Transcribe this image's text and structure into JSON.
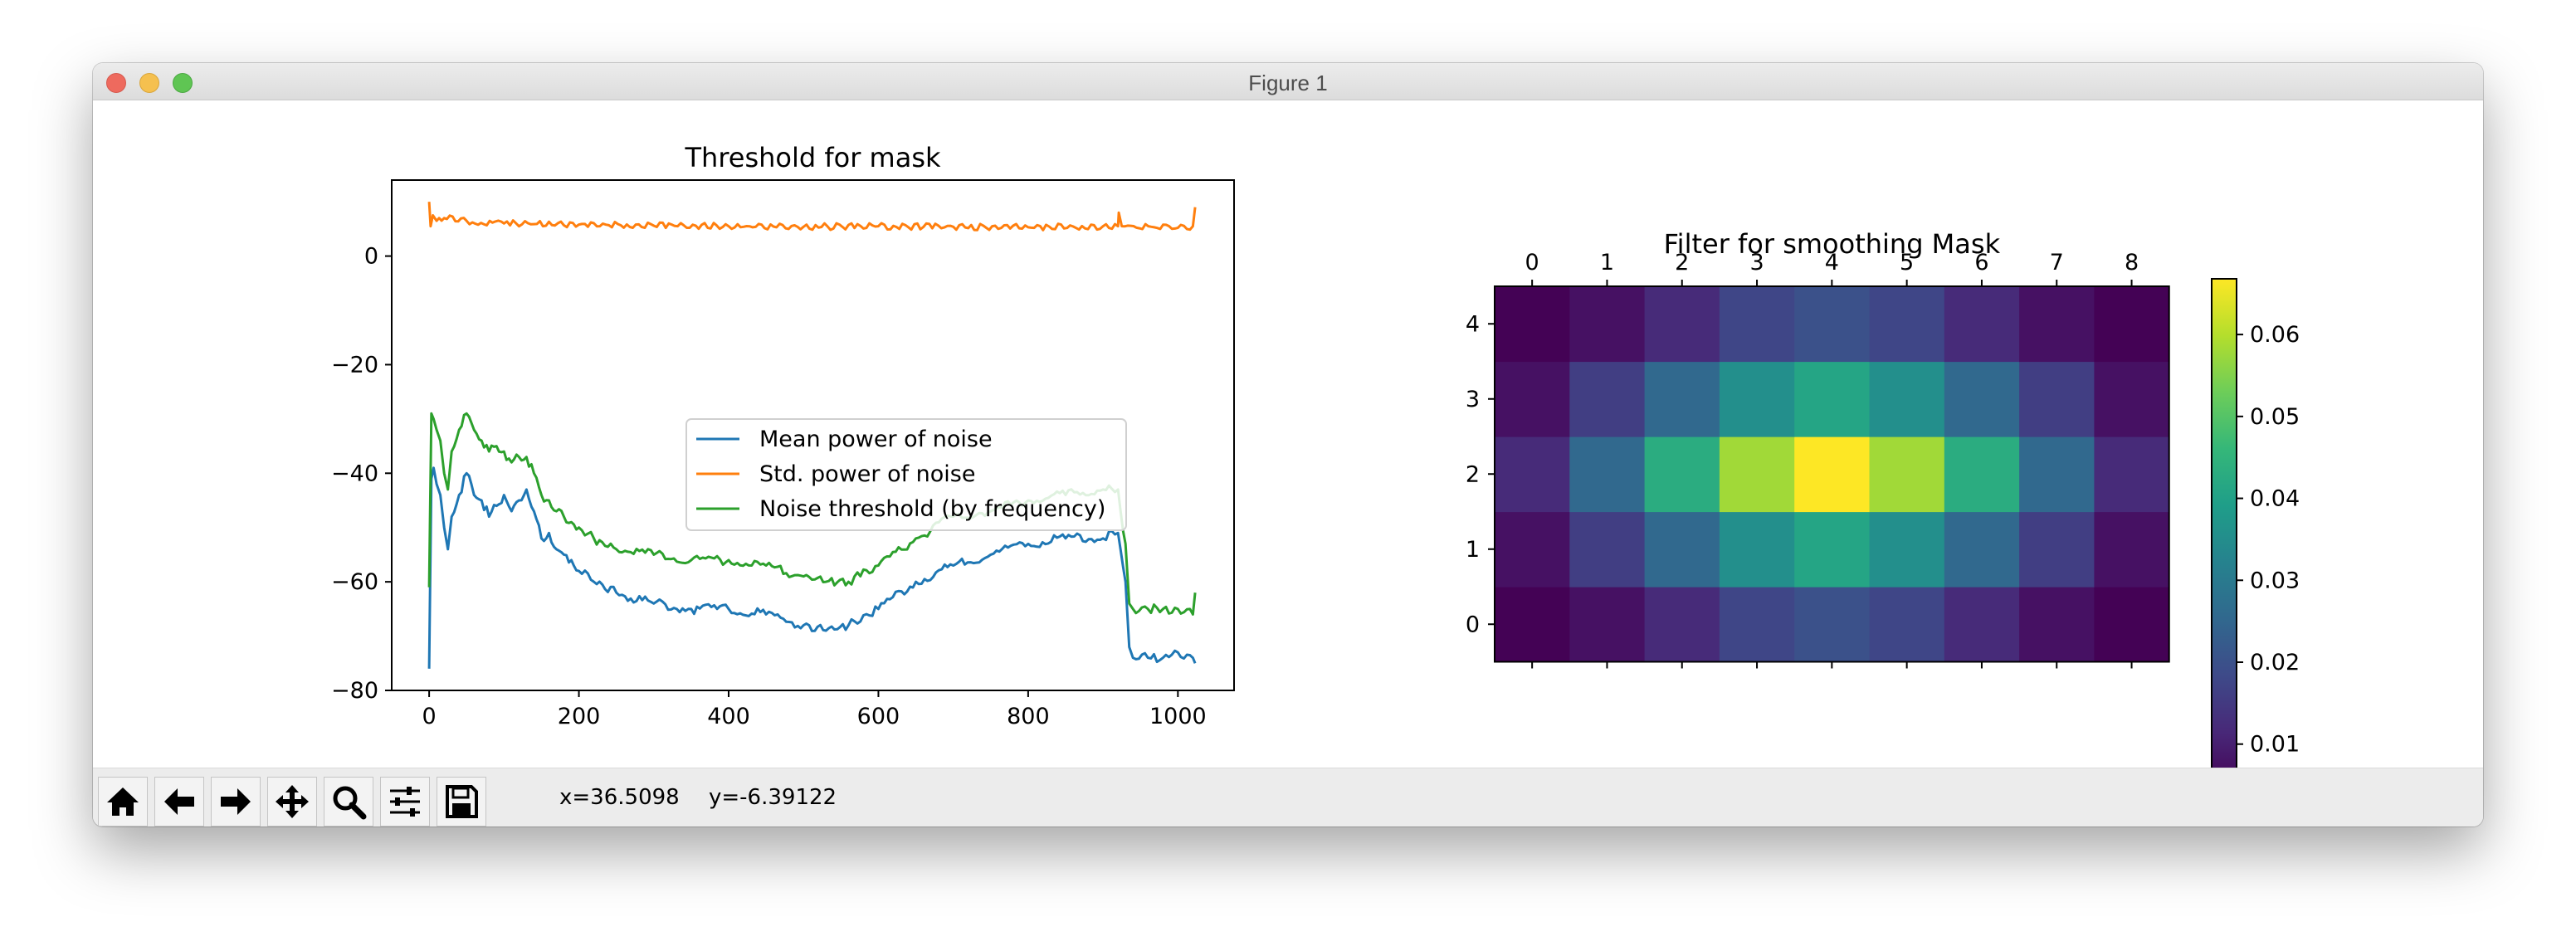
{
  "window": {
    "title": "Figure 1"
  },
  "status": {
    "x_text": "x=36.5098",
    "y_text": "y=-6.39122"
  },
  "toolbar": {
    "buttons": [
      {
        "name": "home-button",
        "icon": "home-icon"
      },
      {
        "name": "back-button",
        "icon": "arrow-left-icon"
      },
      {
        "name": "forward-button",
        "icon": "arrow-right-icon"
      },
      {
        "name": "pan-button",
        "icon": "move-icon"
      },
      {
        "name": "zoom-button",
        "icon": "magnifier-icon"
      },
      {
        "name": "configure-subplots-button",
        "icon": "sliders-icon"
      },
      {
        "name": "save-button",
        "icon": "floppy-disk-icon"
      }
    ]
  },
  "chart_data": [
    {
      "type": "line",
      "title": "Threshold for mask",
      "xlim": [
        -50,
        1075
      ],
      "ylim": [
        -80,
        14
      ],
      "xticks": [
        0,
        200,
        400,
        600,
        800,
        1000
      ],
      "yticks": [
        0,
        -20,
        -40,
        -60,
        -80
      ],
      "grid": false,
      "legend_position": "center",
      "series": [
        {
          "name": "Mean power of noise",
          "color": "#1f77b4",
          "x": [
            0,
            3,
            6,
            10,
            15,
            20,
            25,
            30,
            40,
            50,
            60,
            70,
            80,
            90,
            100,
            110,
            120,
            130,
            140,
            150,
            160,
            170,
            180,
            190,
            200,
            220,
            250,
            300,
            350,
            400,
            450,
            500,
            530,
            560,
            600,
            650,
            700,
            750,
            800,
            850,
            900,
            920,
            930,
            935,
            940,
            960,
            980,
            1000,
            1020,
            1023
          ],
          "y": [
            -76,
            -41,
            -39,
            -42,
            -44,
            -50,
            -54,
            -48,
            -44,
            -40,
            -44,
            -45,
            -48,
            -46,
            -44,
            -47,
            -45,
            -43,
            -47,
            -52,
            -51,
            -54,
            -55,
            -56,
            -58,
            -60,
            -62,
            -64,
            -65,
            -65,
            -66,
            -68,
            -69,
            -68,
            -65,
            -60,
            -57,
            -55,
            -53,
            -52,
            -52,
            -51,
            -60,
            -72,
            -74,
            -74,
            -74,
            -73,
            -74,
            -75
          ]
        },
        {
          "name": "Std. power of noise",
          "color": "#ff7f0e",
          "x": [
            0,
            2,
            5,
            10,
            20,
            50,
            100,
            200,
            300,
            400,
            500,
            600,
            700,
            800,
            900,
            920,
            921,
            925,
            1000,
            1020,
            1023
          ],
          "y": [
            10,
            5.5,
            7.5,
            6.5,
            7,
            6.5,
            6,
            5.8,
            5.6,
            5.5,
            5.4,
            5.5,
            5.4,
            5.3,
            5.5,
            5.5,
            8,
            5.5,
            5.2,
            5.5,
            9
          ]
        },
        {
          "name": "Noise threshold (by frequency)",
          "color": "#2ca02c",
          "x": [
            0,
            3,
            6,
            10,
            15,
            20,
            25,
            30,
            40,
            50,
            60,
            70,
            80,
            90,
            100,
            110,
            120,
            130,
            140,
            150,
            160,
            170,
            180,
            190,
            200,
            220,
            250,
            300,
            350,
            400,
            450,
            500,
            530,
            560,
            600,
            650,
            700,
            750,
            800,
            850,
            900,
            920,
            930,
            935,
            940,
            960,
            980,
            1000,
            1020,
            1023
          ],
          "y": [
            -61,
            -29,
            -30,
            -32,
            -34,
            -40,
            -43,
            -36,
            -32,
            -29,
            -32,
            -34,
            -36,
            -35,
            -36,
            -38,
            -37,
            -37,
            -40,
            -44,
            -45,
            -47,
            -48,
            -49,
            -50,
            -52,
            -54,
            -55,
            -56,
            -56,
            -57,
            -59,
            -60,
            -60,
            -57,
            -52,
            -48,
            -47,
            -45,
            -44,
            -43,
            -43,
            -53,
            -64,
            -65,
            -65,
            -65,
            -65,
            -66,
            -62
          ]
        }
      ]
    },
    {
      "type": "heatmap",
      "title": "Filter for smoothing Mask",
      "xticks": [
        0,
        1,
        2,
        3,
        4,
        5,
        6,
        7,
        8
      ],
      "yticks": [
        4,
        3,
        2,
        1,
        0
      ],
      "colormap": "viridis",
      "origin": "lower",
      "colorbar": {
        "min": 0.0045,
        "max": 0.0668,
        "ticks": [
          0.06,
          0.05,
          0.04,
          0.03,
          0.02,
          0.01
        ]
      },
      "values": [
        [
          0.0046,
          0.0074,
          0.012,
          0.0175,
          0.02,
          0.0175,
          0.012,
          0.0074,
          0.0046
        ],
        [
          0.0074,
          0.016,
          0.0255,
          0.0355,
          0.041,
          0.0355,
          0.0255,
          0.016,
          0.0074
        ],
        [
          0.012,
          0.0255,
          0.043,
          0.058,
          0.0668,
          0.058,
          0.043,
          0.0255,
          0.012
        ],
        [
          0.0074,
          0.016,
          0.0255,
          0.0355,
          0.041,
          0.0355,
          0.0255,
          0.016,
          0.0074
        ],
        [
          0.0046,
          0.0074,
          0.012,
          0.0175,
          0.02,
          0.0175,
          0.012,
          0.0074,
          0.0046
        ]
      ]
    }
  ]
}
